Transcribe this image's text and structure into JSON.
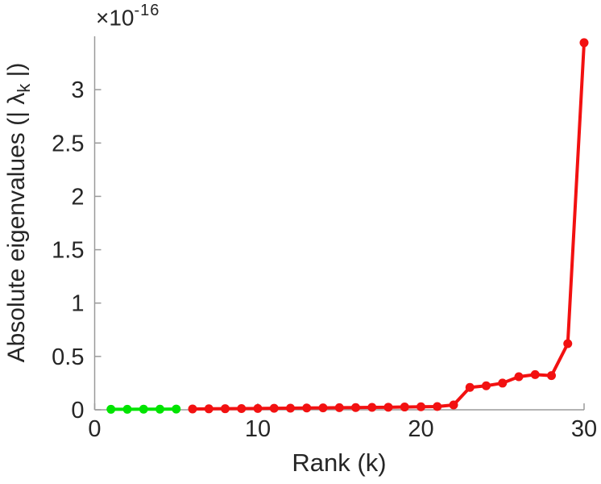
{
  "figure": {
    "background": "#ffffff",
    "xlabel": "Rank (k)",
    "ylabel_pre": "Absolute eigenvalues (| ",
    "ylabel_symbol": "λ",
    "ylabel_sub": "k",
    "ylabel_post": " |)",
    "exponent_base": "×10",
    "exponent_power": "-16",
    "tick_label_color": "#262626",
    "axis_color": "#9a9a9a"
  },
  "chart_data": {
    "type": "line",
    "title": "",
    "xlabel": "Rank (k)",
    "ylabel": "Absolute eigenvalues (|λk|)",
    "y_multiplier_label": "×10^-16",
    "y_scale": 1e-16,
    "xlim": [
      0,
      30
    ],
    "ylim": [
      0,
      3.5
    ],
    "xticks": [
      0,
      10,
      20,
      30
    ],
    "yticks": [
      0,
      0.5,
      1,
      1.5,
      2,
      2.5,
      3
    ],
    "grid": false,
    "legend": "none",
    "axis_color": "#9a9a9a",
    "marker": "filled-circle",
    "series": [
      {
        "name": "green",
        "color": "#00e400",
        "x": [
          1,
          2,
          3,
          4,
          5
        ],
        "y": [
          0.005,
          0.005,
          0.006,
          0.006,
          0.007
        ]
      },
      {
        "name": "red",
        "color": "#f21111",
        "x": [
          6,
          7,
          8,
          9,
          10,
          11,
          12,
          13,
          14,
          15,
          16,
          17,
          18,
          19,
          20,
          21,
          22,
          23,
          24,
          25,
          26,
          27,
          28,
          29,
          30
        ],
        "y": [
          0.008,
          0.009,
          0.01,
          0.011,
          0.012,
          0.014,
          0.015,
          0.017,
          0.018,
          0.02,
          0.021,
          0.023,
          0.024,
          0.026,
          0.028,
          0.03,
          0.045,
          0.21,
          0.225,
          0.25,
          0.31,
          0.33,
          0.32,
          0.62,
          3.44
        ]
      }
    ]
  }
}
